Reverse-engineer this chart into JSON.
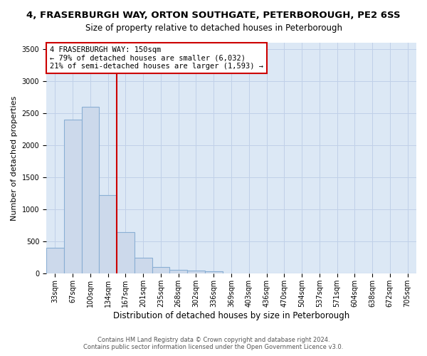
{
  "title_line1": "4, FRASERBURGH WAY, ORTON SOUTHGATE, PETERBOROUGH, PE2 6SS",
  "title_line2": "Size of property relative to detached houses in Peterborough",
  "xlabel": "Distribution of detached houses by size in Peterborough",
  "ylabel": "Number of detached properties",
  "footer_line1": "Contains HM Land Registry data © Crown copyright and database right 2024.",
  "footer_line2": "Contains public sector information licensed under the Open Government Licence v3.0.",
  "categories": [
    "33sqm",
    "67sqm",
    "100sqm",
    "134sqm",
    "167sqm",
    "201sqm",
    "235sqm",
    "268sqm",
    "302sqm",
    "336sqm",
    "369sqm",
    "403sqm",
    "436sqm",
    "470sqm",
    "504sqm",
    "537sqm",
    "571sqm",
    "604sqm",
    "638sqm",
    "672sqm",
    "705sqm"
  ],
  "values": [
    400,
    2400,
    2600,
    1230,
    650,
    250,
    100,
    65,
    50,
    40,
    0,
    0,
    0,
    0,
    0,
    0,
    0,
    0,
    0,
    0,
    0
  ],
  "bar_color": "#ccd9eb",
  "bar_edge_color": "#8aafd4",
  "vline_color": "#cc0000",
  "annotation_text": "4 FRASERBURGH WAY: 150sqm\n← 79% of detached houses are smaller (6,032)\n21% of semi-detached houses are larger (1,593) →",
  "annotation_box_color": "#ffffff",
  "annotation_box_edge": "#cc0000",
  "ylim": [
    0,
    3600
  ],
  "yticks": [
    0,
    500,
    1000,
    1500,
    2000,
    2500,
    3000,
    3500
  ],
  "grid_color": "#c0d0e8",
  "background_color": "#ffffff",
  "plot_bg_color": "#dce8f5",
  "title1_fontsize": 9.5,
  "title2_fontsize": 8.5,
  "ylabel_fontsize": 8,
  "xlabel_fontsize": 8.5,
  "tick_fontsize": 7,
  "annotation_fontsize": 7.5,
  "footer_fontsize": 6
}
